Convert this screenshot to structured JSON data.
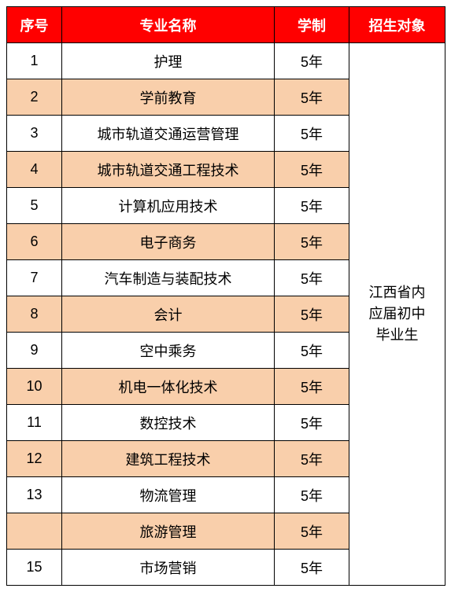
{
  "colors": {
    "header_bg": "#ff0000",
    "header_fg": "#ffffff",
    "row_odd_bg": "#ffffff",
    "row_even_bg": "#f9cfab",
    "border": "#000000",
    "text": "#000000"
  },
  "headers": {
    "seq": "序号",
    "major": "专业名称",
    "duration": "学制",
    "target": "招生对象"
  },
  "target_text": "江西省内\n应届初中\n毕业生",
  "rows": [
    {
      "seq": "1",
      "major": "护理",
      "duration": "5年"
    },
    {
      "seq": "2",
      "major": "学前教育",
      "duration": "5年"
    },
    {
      "seq": "3",
      "major": "城市轨道交通运营管理",
      "duration": "5年"
    },
    {
      "seq": "4",
      "major": "城市轨道交通工程技术",
      "duration": "5年"
    },
    {
      "seq": "5",
      "major": "计算机应用技术",
      "duration": "5年"
    },
    {
      "seq": "6",
      "major": "电子商务",
      "duration": "5年"
    },
    {
      "seq": "7",
      "major": "汽车制造与装配技术",
      "duration": "5年"
    },
    {
      "seq": "8",
      "major": "会计",
      "duration": "5年"
    },
    {
      "seq": "9",
      "major": "空中乘务",
      "duration": "5年"
    },
    {
      "seq": "10",
      "major": "机电一体化技术",
      "duration": "5年"
    },
    {
      "seq": "11",
      "major": "数控技术",
      "duration": "5年"
    },
    {
      "seq": "12",
      "major": "建筑工程技术",
      "duration": "5年"
    },
    {
      "seq": "13",
      "major": "物流管理",
      "duration": "5年"
    },
    {
      "seq": "",
      "major": "旅游管理",
      "duration": "5年"
    },
    {
      "seq": "15",
      "major": "市场营销",
      "duration": "5年"
    }
  ]
}
